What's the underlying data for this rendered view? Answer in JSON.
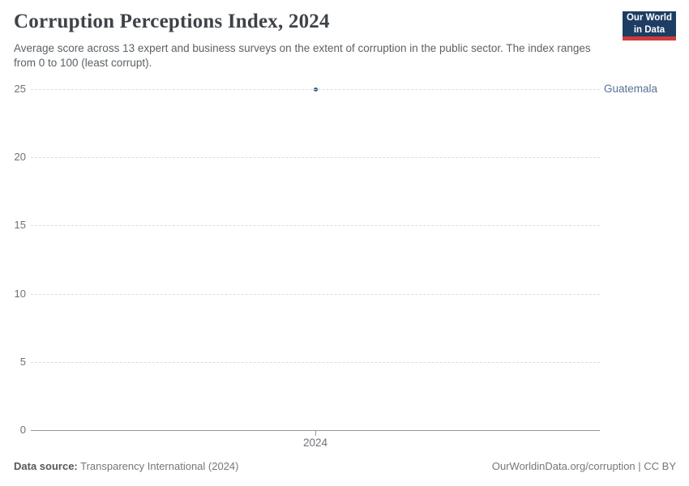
{
  "header": {
    "title": "Corruption Perceptions Index, 2024",
    "subtitle": "Average score across 13 expert and business surveys on the extent of corruption in the public sector. The index ranges from 0 to 100 (least corrupt).",
    "logo": {
      "line1": "Our World",
      "line2": "in Data"
    }
  },
  "colors": {
    "logo_navy": "#1d3d63",
    "logo_red": "#cf3a3a",
    "gridline": "#dcdcdc",
    "axis": "#969696"
  },
  "chart_data": {
    "type": "scatter",
    "title": "Corruption Perceptions Index, 2024",
    "x": [
      2024
    ],
    "xticks": [
      "2024"
    ],
    "series": [
      {
        "name": "Guatemala",
        "values": [
          25
        ],
        "point_color": "#3a5c8f",
        "label_color": "#567296"
      }
    ],
    "xlabel": "",
    "ylabel": "",
    "ylim": [
      0,
      25
    ],
    "yticks": [
      0,
      5,
      10,
      15,
      20,
      25
    ],
    "grid": "horizontal-dashed",
    "legend_position": "right-of-gridline"
  },
  "footer": {
    "data_source_label": "Data source:",
    "data_source_value": "Transparency International (2024)",
    "attribution": "OurWorldinData.org/corruption | CC BY"
  }
}
